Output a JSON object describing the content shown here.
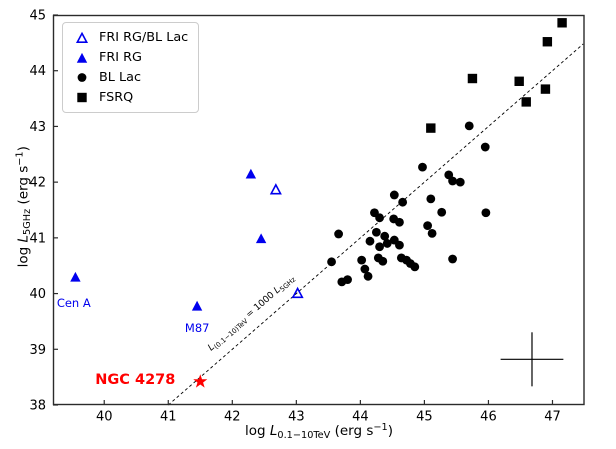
{
  "figure": {
    "background": "#ffffff",
    "plot_border_color": "#2b2b2b"
  },
  "chart_data": {
    "type": "scatter",
    "title": "",
    "xlabel": "log L_0.1-10TeV (erg s^-1)",
    "ylabel": "log L_5GHz (erg s^-1)",
    "xlabel_parts": [
      {
        "t": "log ",
        "s": "n"
      },
      {
        "t": "L",
        "s": "i"
      },
      {
        "t": "0.1−10TeV",
        "s": "sub"
      },
      {
        "t": " (erg s",
        "s": "n"
      },
      {
        "t": "−1",
        "s": "sup"
      },
      {
        "t": ")",
        "s": "n"
      }
    ],
    "ylabel_parts": [
      {
        "t": "log ",
        "s": "n"
      },
      {
        "t": "L",
        "s": "i"
      },
      {
        "t": "5GHz",
        "s": "sub"
      },
      {
        "t": " (erg s",
        "s": "n"
      },
      {
        "t": "−1",
        "s": "sup"
      },
      {
        "t": ")",
        "s": "n"
      }
    ],
    "xlim": [
      39.2,
      47.5
    ],
    "ylim": [
      38,
      45
    ],
    "x_ticks": [
      40,
      41,
      42,
      43,
      44,
      45,
      46,
      47
    ],
    "y_ticks": [
      38,
      39,
      40,
      41,
      42,
      43,
      44,
      45
    ],
    "grid": false,
    "legend_position": "upper left",
    "series": [
      {
        "name": "FRI RG/BL Lac",
        "marker": "triangle-open",
        "color": "#0000ee",
        "points": [
          [
            42.68,
            41.86
          ],
          [
            43.02,
            40.0
          ]
        ]
      },
      {
        "name": "FRI RG",
        "marker": "triangle",
        "color": "#0000ee",
        "points": [
          [
            39.55,
            40.29
          ],
          [
            41.45,
            39.77
          ],
          [
            42.29,
            42.14
          ],
          [
            42.45,
            40.98
          ]
        ]
      },
      {
        "name": "BL Lac",
        "marker": "circle",
        "color": "#000000",
        "points": [
          [
            43.55,
            40.57
          ],
          [
            43.66,
            41.07
          ],
          [
            43.71,
            40.21
          ],
          [
            43.8,
            40.25
          ],
          [
            44.02,
            40.6
          ],
          [
            44.07,
            40.44
          ],
          [
            44.12,
            40.31
          ],
          [
            44.15,
            40.94
          ],
          [
            44.22,
            41.45
          ],
          [
            44.25,
            41.1
          ],
          [
            44.28,
            40.64
          ],
          [
            44.3,
            40.84
          ],
          [
            44.3,
            41.36
          ],
          [
            44.35,
            40.58
          ],
          [
            44.38,
            41.03
          ],
          [
            44.42,
            40.9
          ],
          [
            44.52,
            41.34
          ],
          [
            44.53,
            40.96
          ],
          [
            44.53,
            41.77
          ],
          [
            44.61,
            40.87
          ],
          [
            44.61,
            41.28
          ],
          [
            44.64,
            40.64
          ],
          [
            44.66,
            41.64
          ],
          [
            44.72,
            40.6
          ],
          [
            44.78,
            40.54
          ],
          [
            44.85,
            40.48
          ],
          [
            44.97,
            42.27
          ],
          [
            45.05,
            41.22
          ],
          [
            45.1,
            41.7
          ],
          [
            45.12,
            41.08
          ],
          [
            45.27,
            41.46
          ],
          [
            45.38,
            42.13
          ],
          [
            45.44,
            40.62
          ],
          [
            45.44,
            42.02
          ],
          [
            45.56,
            42.0
          ],
          [
            45.7,
            43.01
          ],
          [
            45.95,
            42.63
          ],
          [
            45.96,
            41.45
          ]
        ]
      },
      {
        "name": "FSRQ",
        "marker": "square",
        "color": "#000000",
        "points": [
          [
            45.1,
            42.97
          ],
          [
            45.75,
            43.86
          ],
          [
            46.48,
            43.81
          ],
          [
            46.59,
            43.44
          ],
          [
            46.89,
            43.67
          ],
          [
            46.92,
            44.52
          ],
          [
            47.15,
            44.86
          ]
        ]
      },
      {
        "name": "NGC 4278",
        "marker": "star",
        "color": "#ff0000",
        "show_in_legend": false,
        "points": [
          [
            41.5,
            38.42
          ]
        ]
      }
    ],
    "reference_line": {
      "x1": 41.0,
      "y1": 38.0,
      "x2": 47.48,
      "y2": 44.48,
      "style": "dashed",
      "color": "#000000",
      "label": "L(0.1-10)TeV = 1000 L5GHz",
      "label_parts": [
        {
          "t": "L",
          "s": "i"
        },
        {
          "t": "(0.1−10)TeV",
          "s": "sub"
        },
        {
          "t": " = 1000 ",
          "s": "n"
        },
        {
          "t": "L",
          "s": "i"
        },
        {
          "t": "5GHz",
          "s": "sub"
        }
      ],
      "label_x": 42.32,
      "label_y": 39.62
    },
    "annotations": [
      {
        "text": "Cen A",
        "x": 39.26,
        "y": 39.76,
        "color": "#0000ee",
        "size": 11.5,
        "bold": false
      },
      {
        "text": "M87",
        "x": 41.26,
        "y": 39.31,
        "color": "#0000ee",
        "size": 11.5,
        "bold": false
      },
      {
        "text": "NGC 4278",
        "x": 39.86,
        "y": 38.38,
        "color": "#ff0000",
        "size": 14.5,
        "bold": true
      }
    ],
    "error_cross": {
      "x": 46.68,
      "y": 38.82,
      "xerr": 0.49,
      "yerr": 0.485,
      "color": "#000000"
    }
  }
}
